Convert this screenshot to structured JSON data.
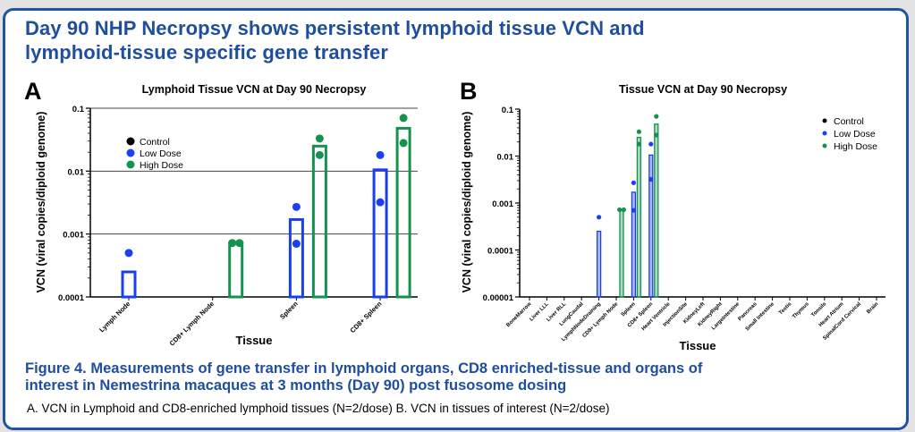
{
  "headline": {
    "line1": "Day 90 NHP Necropsy shows persistent lymphoid tissue VCN and",
    "line2": "lymphoid-tissue specific gene transfer"
  },
  "colors": {
    "brand_blue": "#1f4e9c",
    "control": "#000000",
    "low_dose": "#1a3ef5",
    "high_dose": "#14934f"
  },
  "caption": {
    "title_line1": "Figure 4. Measurements of gene transfer in lymphoid organs, CD8 enriched-tissue and organs of",
    "title_line2": "interest in Nemestrina macaques at 3 months (Day 90) post fusosome dosing",
    "subtitle": "A. VCN in Lymphoid and CD8-enriched lymphoid tissues (N=2/dose) B. VCN in tissues of interest (N=2/dose)"
  },
  "chart_data": [
    {
      "panel": "A",
      "type": "bar",
      "title": "Lymphoid Tissue VCN at Day 90 Necropsy",
      "xlabel": "Tissue",
      "ylabel": "VCN (viral copies/diploid genome)",
      "yscale": "log",
      "ylim": [
        0.0001,
        0.1
      ],
      "yticks": [
        "0.1",
        "0.01",
        "0.001",
        "0.0001"
      ],
      "grid": "horizontal major",
      "legend_position": "top-left",
      "legend": [
        "Control",
        "Low Dose",
        "High Dose"
      ],
      "categories": [
        "Lymph Node",
        "CD8+ Lymph Node",
        "Spleen",
        "CD8+ Spleen"
      ],
      "series": [
        {
          "name": "Control",
          "values": [
            null,
            null,
            null,
            null
          ],
          "points": [
            [],
            [],
            [],
            []
          ]
        },
        {
          "name": "Low Dose",
          "values": [
            0.00025,
            null,
            0.0017,
            0.0105
          ],
          "points": [
            [
              0.0005
            ],
            [],
            [
              0.0027,
              0.0007
            ],
            [
              0.018,
              0.0032
            ]
          ]
        },
        {
          "name": "High Dose",
          "values": [
            null,
            0.00072,
            0.025,
            0.048
          ],
          "points": [
            [],
            [
              0.00072,
              0.00072
            ],
            [
              0.033,
              0.018
            ],
            [
              0.07,
              0.028
            ]
          ]
        }
      ]
    },
    {
      "panel": "B",
      "type": "bar",
      "title": "Tissue VCN at Day 90 Necropsy",
      "xlabel": "Tissue",
      "ylabel": "VCN (viral copies/diploid genome)",
      "yscale": "log",
      "ylim": [
        1e-05,
        0.1
      ],
      "yticks": [
        "0.1",
        "0.01",
        "0.001",
        "0.0001",
        "0.00001"
      ],
      "grid": "none",
      "legend_position": "top-right",
      "legend": [
        "Control",
        "Low Dose",
        "High Dose"
      ],
      "categories": [
        "BoneMarrow",
        "Liver LLL",
        "Liver RLL",
        "LungCaudal",
        "LymphNodeDraining",
        "CD8+ Lymph Node",
        "Spleen",
        "CD8+ Spleen",
        "Heart Ventricle",
        "InjectionSite",
        "KidneyLeft",
        "KidneyRight",
        "LargeIntestine",
        "Pancreas",
        "Small Intestine",
        "Testis",
        "Thymus",
        "Tonsils",
        "Heart Atrium",
        "SpinalCord Cervical",
        "Brain"
      ],
      "series": [
        {
          "name": "Control",
          "values": [
            null,
            null,
            null,
            null,
            null,
            null,
            null,
            null,
            null,
            null,
            null,
            null,
            null,
            null,
            null,
            null,
            null,
            null,
            null,
            null,
            null
          ],
          "points": []
        },
        {
          "name": "Low Dose",
          "values": [
            null,
            null,
            null,
            null,
            0.00025,
            null,
            0.0017,
            0.0105,
            null,
            null,
            null,
            null,
            null,
            null,
            null,
            null,
            null,
            null,
            null,
            null,
            null
          ],
          "points": [
            [],
            [],
            [],
            [],
            [
              0.0005
            ],
            [],
            [
              0.0027,
              0.0007
            ],
            [
              0.018,
              0.0032
            ],
            [],
            [],
            [],
            [],
            [],
            [],
            [],
            [],
            [],
            [],
            [],
            [],
            []
          ]
        },
        {
          "name": "High Dose",
          "values": [
            null,
            null,
            null,
            null,
            null,
            0.00072,
            0.025,
            0.048,
            null,
            null,
            null,
            null,
            null,
            null,
            null,
            null,
            null,
            null,
            null,
            null,
            null
          ],
          "points": [
            [],
            [],
            [],
            [],
            [],
            [
              0.00072,
              0.00072
            ],
            [
              0.033,
              0.018
            ],
            [
              0.07,
              0.028
            ],
            [],
            [],
            [],
            [],
            [],
            [],
            [],
            [],
            [],
            [],
            [],
            [],
            []
          ]
        }
      ]
    }
  ]
}
